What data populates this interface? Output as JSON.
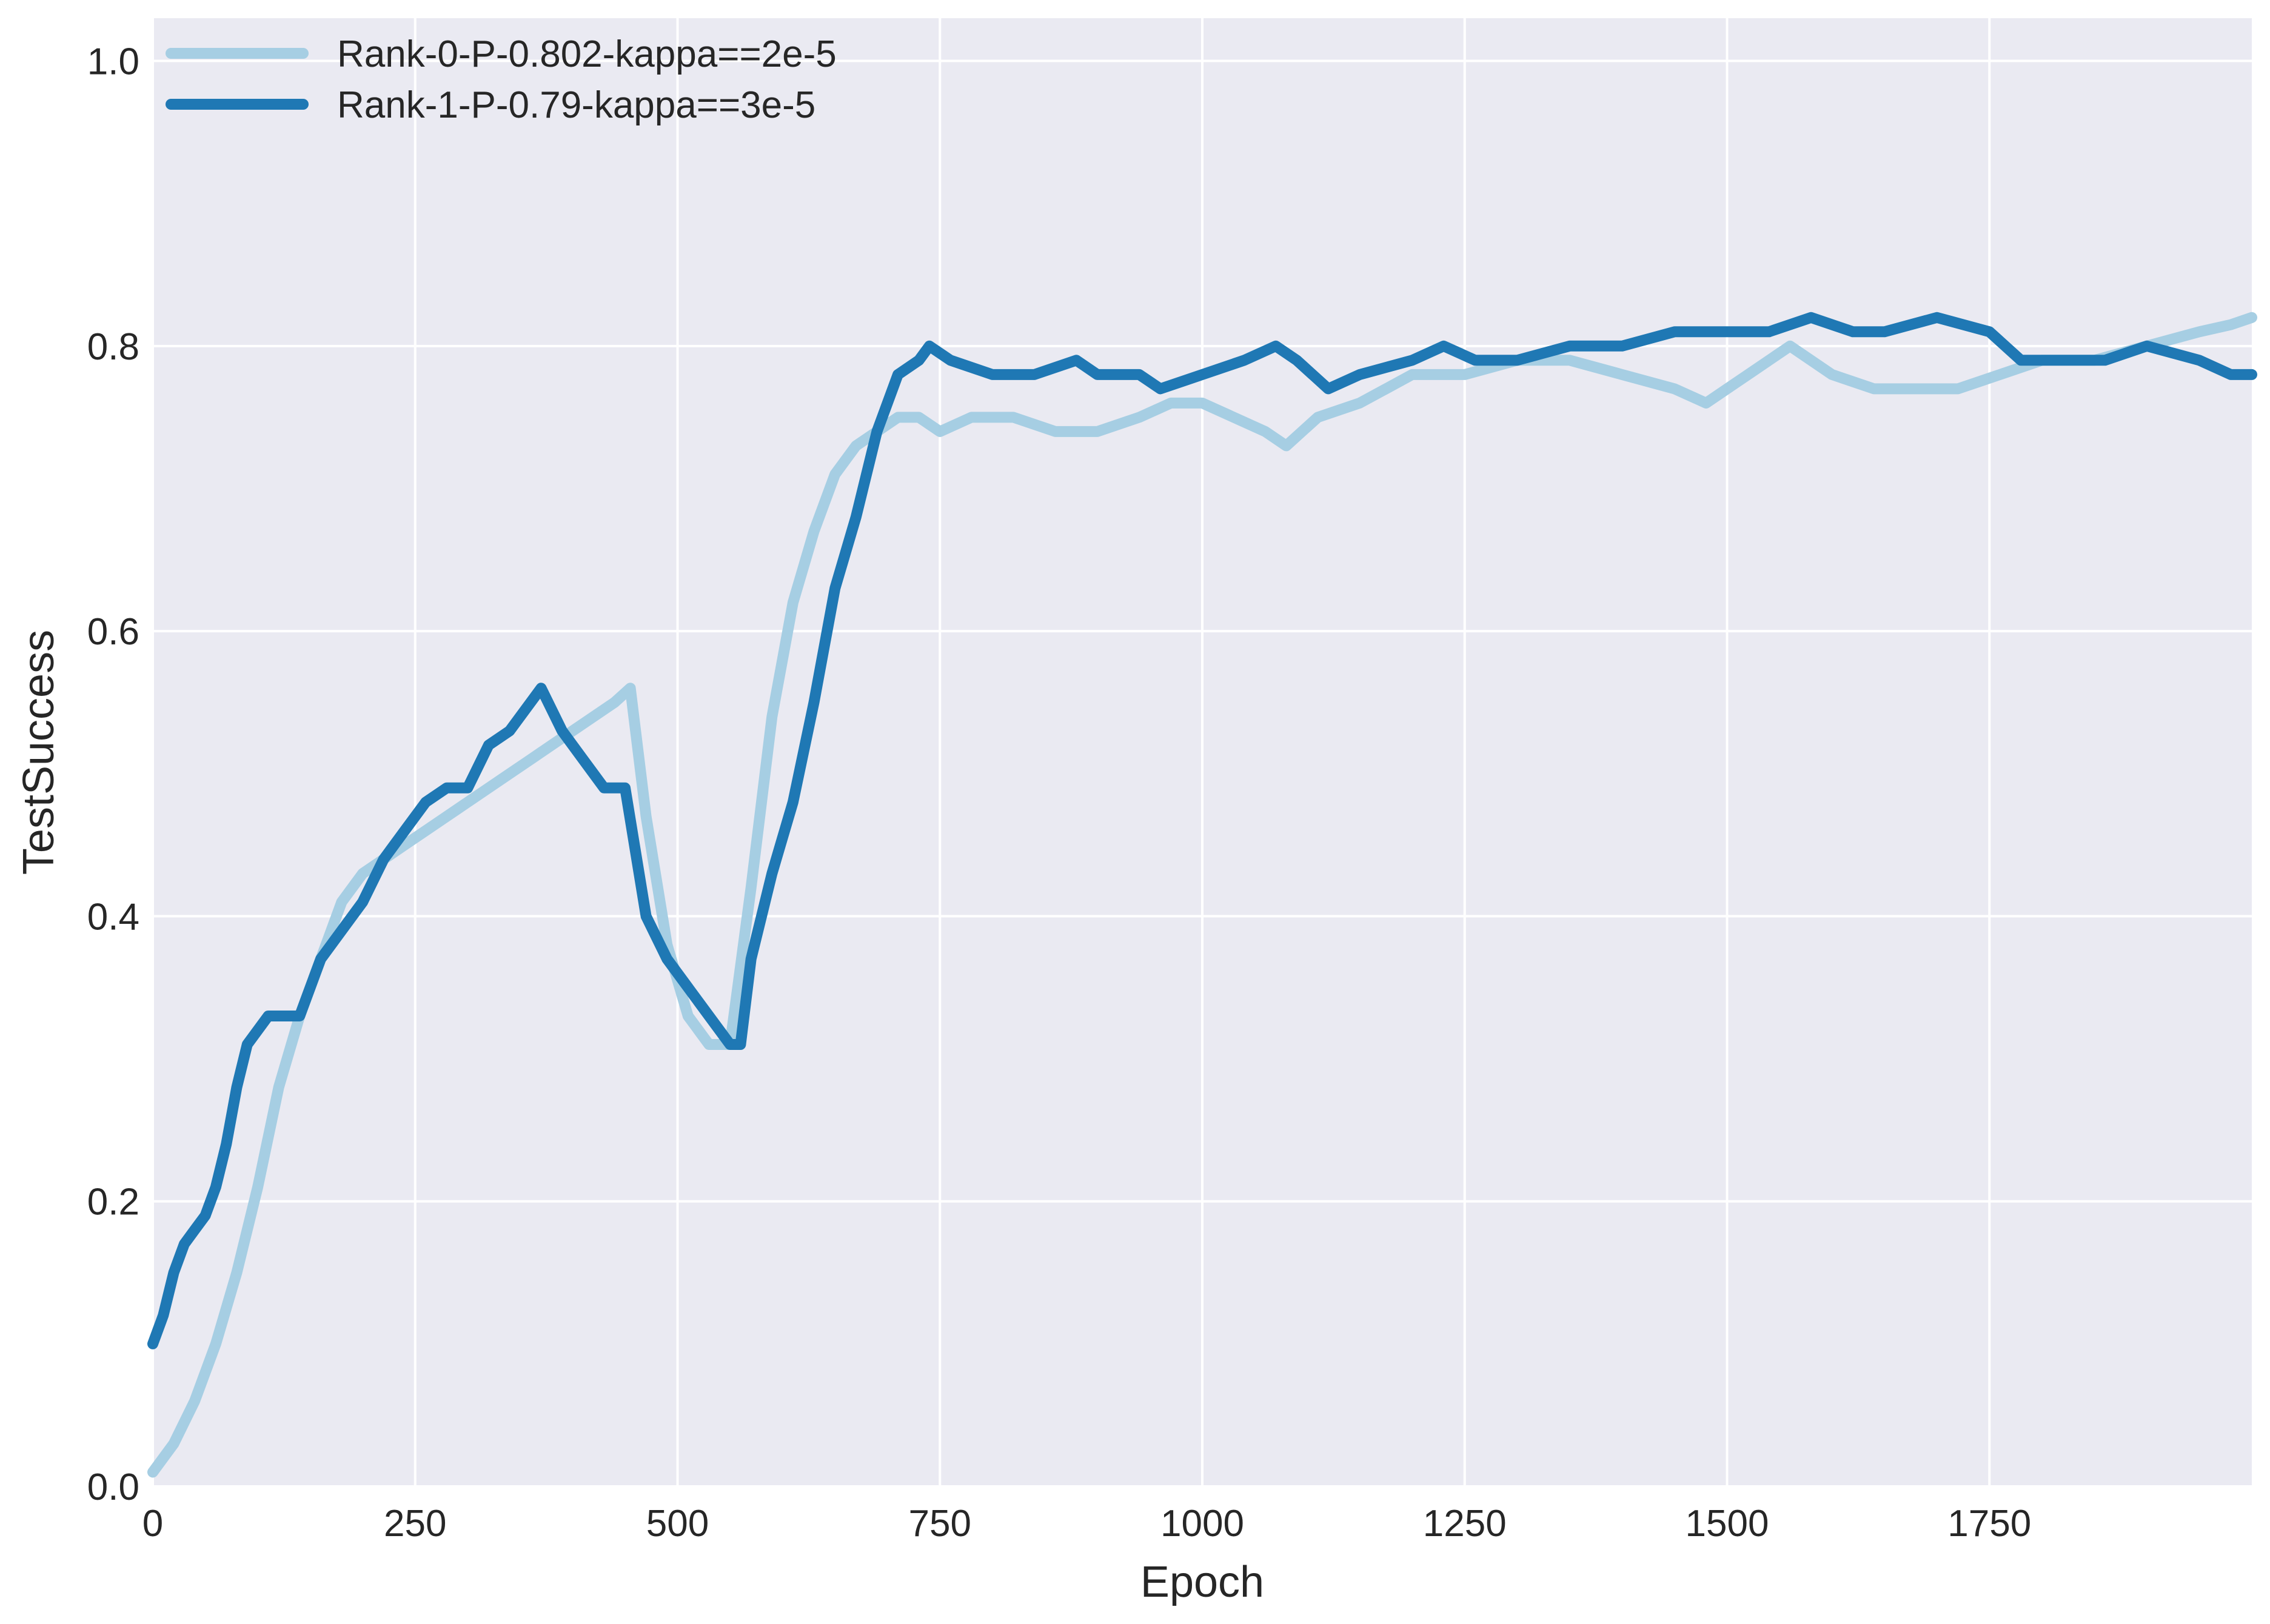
{
  "chart_data": {
    "type": "line",
    "title": "",
    "xlabel": "Epoch",
    "ylabel": "TestSuccess",
    "xlim": [
      0,
      2000
    ],
    "ylim": [
      0.0,
      1.03
    ],
    "xticks": [
      0,
      250,
      500,
      750,
      1000,
      1250,
      1500,
      1750
    ],
    "xtick_labels": [
      "0",
      "250",
      "500",
      "750",
      "1000",
      "1250",
      "1500",
      "1750"
    ],
    "yticks": [
      0.0,
      0.2,
      0.4,
      0.6,
      0.8,
      1.0
    ],
    "ytick_labels": [
      "0.0",
      "0.2",
      "0.4",
      "0.6",
      "0.8",
      "1.0"
    ],
    "grid": true,
    "style": {
      "plot_background": "#eaeaf2",
      "grid_color": "#ffffff",
      "text_color": "#262626"
    },
    "legend": {
      "position": "top-left",
      "entries": [
        "Rank-0-P-0.802-kappa==2e-5",
        "Rank-1-P-0.79-kappa==3e-5"
      ]
    },
    "series": [
      {
        "name": "Rank-0-P-0.802-kappa==2e-5",
        "color": "#a6cee3",
        "x": [
          0,
          20,
          40,
          60,
          80,
          100,
          120,
          140,
          160,
          180,
          200,
          220,
          240,
          260,
          280,
          300,
          320,
          340,
          360,
          380,
          400,
          420,
          440,
          455,
          470,
          490,
          510,
          530,
          550,
          570,
          590,
          610,
          630,
          650,
          670,
          690,
          710,
          730,
          750,
          780,
          820,
          860,
          900,
          940,
          970,
          1000,
          1030,
          1060,
          1080,
          1110,
          1150,
          1200,
          1250,
          1300,
          1350,
          1400,
          1450,
          1480,
          1520,
          1560,
          1600,
          1640,
          1680,
          1720,
          1760,
          1800,
          1850,
          1900,
          1950,
          1980,
          2000
        ],
        "y": [
          0.01,
          0.03,
          0.06,
          0.1,
          0.15,
          0.21,
          0.28,
          0.33,
          0.37,
          0.41,
          0.43,
          0.44,
          0.45,
          0.46,
          0.47,
          0.48,
          0.49,
          0.5,
          0.51,
          0.52,
          0.53,
          0.54,
          0.55,
          0.56,
          0.47,
          0.38,
          0.33,
          0.31,
          0.31,
          0.42,
          0.54,
          0.62,
          0.67,
          0.71,
          0.73,
          0.74,
          0.75,
          0.75,
          0.74,
          0.75,
          0.75,
          0.74,
          0.74,
          0.75,
          0.76,
          0.76,
          0.75,
          0.74,
          0.73,
          0.75,
          0.76,
          0.78,
          0.78,
          0.79,
          0.79,
          0.78,
          0.77,
          0.76,
          0.78,
          0.8,
          0.78,
          0.77,
          0.77,
          0.77,
          0.78,
          0.79,
          0.79,
          0.8,
          0.81,
          0.815,
          0.82
        ]
      },
      {
        "name": "Rank-1-P-0.79-kappa==3e-5",
        "color": "#1f78b4",
        "x": [
          0,
          10,
          20,
          30,
          40,
          50,
          60,
          70,
          80,
          90,
          100,
          110,
          120,
          130,
          140,
          160,
          180,
          200,
          220,
          240,
          260,
          280,
          300,
          320,
          340,
          360,
          370,
          390,
          410,
          430,
          450,
          470,
          490,
          510,
          530,
          550,
          560,
          570,
          590,
          610,
          630,
          650,
          670,
          690,
          710,
          730,
          740,
          760,
          800,
          840,
          880,
          900,
          940,
          960,
          1000,
          1040,
          1070,
          1090,
          1120,
          1150,
          1200,
          1230,
          1260,
          1300,
          1350,
          1400,
          1450,
          1500,
          1540,
          1580,
          1620,
          1650,
          1700,
          1750,
          1780,
          1820,
          1860,
          1900,
          1950,
          1980,
          2000
        ],
        "y": [
          0.1,
          0.12,
          0.15,
          0.17,
          0.18,
          0.19,
          0.21,
          0.24,
          0.28,
          0.31,
          0.32,
          0.33,
          0.33,
          0.33,
          0.33,
          0.37,
          0.39,
          0.41,
          0.44,
          0.46,
          0.48,
          0.49,
          0.49,
          0.52,
          0.53,
          0.55,
          0.56,
          0.53,
          0.51,
          0.49,
          0.49,
          0.4,
          0.37,
          0.35,
          0.33,
          0.31,
          0.31,
          0.37,
          0.43,
          0.48,
          0.55,
          0.63,
          0.68,
          0.74,
          0.78,
          0.79,
          0.8,
          0.79,
          0.78,
          0.78,
          0.79,
          0.78,
          0.78,
          0.77,
          0.78,
          0.79,
          0.8,
          0.79,
          0.77,
          0.78,
          0.79,
          0.8,
          0.79,
          0.79,
          0.8,
          0.8,
          0.81,
          0.81,
          0.81,
          0.82,
          0.81,
          0.81,
          0.82,
          0.81,
          0.79,
          0.79,
          0.79,
          0.8,
          0.79,
          0.78,
          0.78
        ]
      }
    ]
  }
}
